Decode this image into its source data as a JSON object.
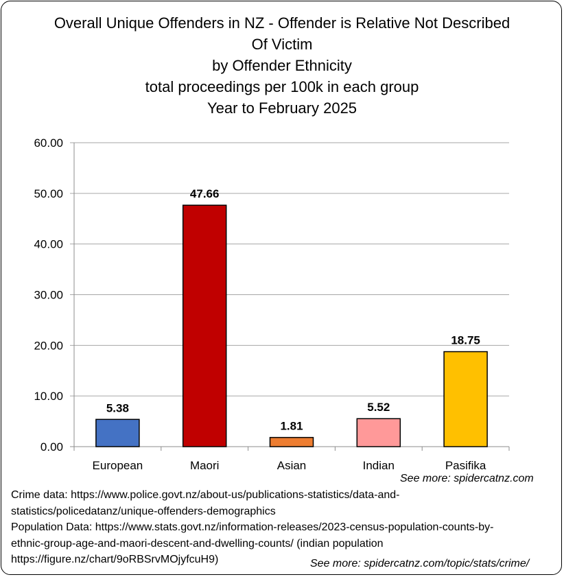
{
  "title": {
    "line1": "Overall Unique Offenders in NZ - Offender is Relative Not Described",
    "line2": "Of Victim",
    "line3": "by Offender Ethnicity",
    "line4": "total proceedings per 100k in each group",
    "line5": "Year to February 2025"
  },
  "chart_data": {
    "type": "bar",
    "title": "Overall Unique Offenders in NZ - Offender is Relative Not Described Of Victim by Offender Ethnicity total proceedings per 100k in each group Year to February 2025",
    "categories": [
      "European",
      "Maori",
      "Asian",
      "Indian",
      "Pasifika"
    ],
    "values": [
      5.38,
      47.66,
      1.81,
      5.52,
      18.75
    ],
    "value_labels": [
      "5.38",
      "47.66",
      "1.81",
      "5.52",
      "18.75"
    ],
    "colors": [
      "#4472C4",
      "#C00000",
      "#ED7D31",
      "#FF9999",
      "#FFC000"
    ],
    "yticks": [
      "0.00",
      "10.00",
      "20.00",
      "30.00",
      "40.00",
      "50.00",
      "60.00"
    ],
    "ylim": [
      0,
      60
    ],
    "xlabel": "",
    "ylabel": "",
    "grid": true,
    "legend": "none"
  },
  "footer": {
    "see_more_1": "See more: spidercatnz.com",
    "crime_line1": "Crime data: https://www.police.govt.nz/about-us/publications-statistics/data-and-",
    "crime_line2": "statistics/policedatanz/unique-offenders-demographics",
    "pop_line1": "Population Data: https://www.stats.govt.nz/information-releases/2023-census-population-counts-by-",
    "pop_line2": "ethnic-group-age-and-maori-descent-and-dwelling-counts/ (indian population",
    "pop_line3": "https://figure.nz/chart/9oRBSrvMOjyfcuH9)",
    "see_more_2": "See more: spidercatnz.com/topic/stats/crime/"
  }
}
